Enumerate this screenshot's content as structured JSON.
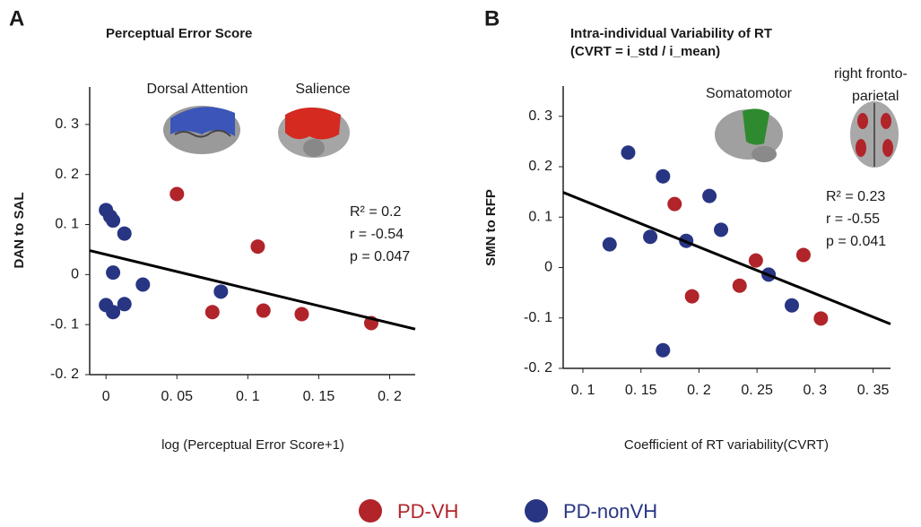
{
  "chart_data": [
    {
      "type": "scatter",
      "panel": "A",
      "title": "Perceptual Error Score",
      "x_label": "log (Perceptual Error Score+1)",
      "y_label": "DAN to SAL",
      "xlim": [
        -0.0115,
        0.218
      ],
      "ylim": [
        -0.2,
        0.375
      ],
      "xticks": [
        0,
        {
          "value": 0.05,
          "label": "0. 05"
        },
        {
          "value": 0.1,
          "label": "0. 1"
        },
        {
          "value": 0.15,
          "label": "0. 15"
        },
        {
          "value": 0.2,
          "label": "0. 2"
        }
      ],
      "yticks": [
        {
          "value": -0.2,
          "label": "-0. 2"
        },
        {
          "value": -0.1,
          "label": "-0. 1"
        },
        0,
        {
          "value": 0.1,
          "label": "0. 1"
        },
        {
          "value": 0.2,
          "label": "0. 2"
        },
        {
          "value": 0.3,
          "label": "0. 3"
        }
      ],
      "network_labels": [
        "Dorsal Attention",
        "Salience"
      ],
      "annotations": [
        "R² = 0.2",
        "r = -0.54",
        "p = 0.047"
      ],
      "fit_line": {
        "x": [
          -0.0115,
          0.218
        ],
        "y": [
          0.048,
          -0.109
        ]
      },
      "series": [
        {
          "color": "#b0242a",
          "x": [
            0.05,
            0.107,
            0.075,
            0.111,
            0.138,
            0.187
          ],
          "values": [
            0.161,
            0.056,
            -0.075,
            -0.072,
            -0.079,
            -0.097
          ]
        },
        {
          "color": "#283583",
          "x": [
            0,
            0.003,
            0.005,
            0.013,
            0.005,
            0,
            0.005,
            0.013,
            0.026,
            0.081
          ],
          "values": [
            0.129,
            0.116,
            0.108,
            0.082,
            0.004,
            -0.061,
            -0.075,
            -0.059,
            -0.02,
            -0.034
          ]
        }
      ]
    },
    {
      "type": "scatter",
      "panel": "B",
      "title": "Intra-individual Variability of RT",
      "subtitle": "(CVRT = i_std / i_mean)",
      "x_label": "Coefficient of RT variability(CVRT)",
      "y_label": "SMN to RFP",
      "xlim": [
        0.083,
        0.365
      ],
      "ylim": [
        -0.2,
        0.36
      ],
      "xticks": [
        {
          "value": 0.1,
          "label": "0. 1"
        },
        {
          "value": 0.15,
          "label": "0. 15"
        },
        {
          "value": 0.2,
          "label": "0. 2"
        },
        {
          "value": 0.25,
          "label": "0. 25"
        },
        {
          "value": 0.3,
          "label": "0. 3"
        },
        {
          "value": 0.35,
          "label": "0. 35"
        }
      ],
      "yticks": [
        {
          "value": -0.2,
          "label": "-0. 2"
        },
        {
          "value": -0.1,
          "label": "-0. 1"
        },
        0,
        {
          "value": 0.1,
          "label": "0. 1"
        },
        {
          "value": 0.2,
          "label": "0. 2"
        },
        {
          "value": 0.3,
          "label": "0. 3"
        }
      ],
      "network_labels": [
        "Somatomotor",
        "right fronto-",
        "parietal"
      ],
      "annotations": [
        "R² = 0.23",
        "r = -0.55",
        "p = 0.041"
      ],
      "fit_line": {
        "x": [
          0.083,
          0.365
        ],
        "y": [
          0.149,
          -0.112
        ]
      },
      "series": [
        {
          "color": "#b0242a",
          "x": [
            0.179,
            0.249,
            0.29,
            0.235,
            0.194,
            0.305
          ],
          "values": [
            0.126,
            0.014,
            0.025,
            -0.036,
            -0.057,
            -0.101
          ]
        },
        {
          "color": "#283583",
          "x": [
            0.139,
            0.169,
            0.209,
            0.123,
            0.158,
            0.189,
            0.219,
            0.26,
            0.28,
            0.169
          ],
          "values": [
            0.228,
            0.181,
            0.142,
            0.046,
            0.061,
            0.053,
            0.075,
            -0.014,
            -0.075,
            -0.164
          ]
        }
      ]
    }
  ],
  "legend": [
    {
      "name": "PD-VH",
      "color": "#b0242a"
    },
    {
      "name": "PD-nonVH",
      "color": "#283583"
    }
  ]
}
